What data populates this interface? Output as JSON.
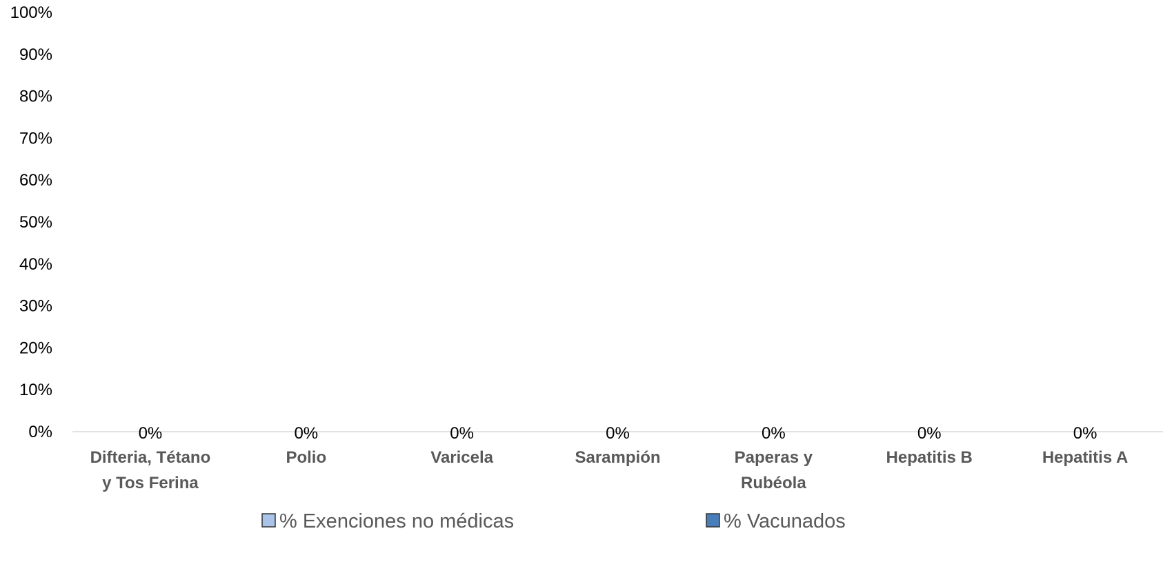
{
  "chart_data": {
    "type": "bar",
    "stacked": true,
    "categories": [
      [
        "Difteria, Tétano",
        "y Tos Ferina"
      ],
      [
        "Polio"
      ],
      [
        "Varicela"
      ],
      [
        "Sarampión"
      ],
      [
        "Paperas y",
        "Rubéola"
      ],
      [
        "Hepatitis B"
      ],
      [
        "Hepatitis A"
      ]
    ],
    "series": [
      {
        "name": "% Exenciones no médicas",
        "color": "#A9C4E8",
        "values": [
          0,
          0,
          0,
          0,
          0,
          0,
          0
        ]
      },
      {
        "name": "% Vacunados",
        "color": "#4A7EBB",
        "values": [
          0,
          0,
          0,
          0,
          0,
          0,
          0
        ]
      }
    ],
    "data_labels": [
      "0%",
      "0%",
      "0%",
      "0%",
      "0%",
      "0%",
      "0%"
    ],
    "y_ticks": [
      "0%",
      "10%",
      "20%",
      "30%",
      "40%",
      "50%",
      "60%",
      "70%",
      "80%",
      "90%",
      "100%"
    ],
    "ylim": [
      0,
      100
    ],
    "grid": false,
    "legend": "bottom",
    "axis_line_color": "#D9D9D9"
  }
}
